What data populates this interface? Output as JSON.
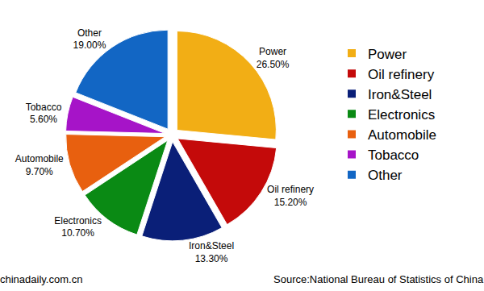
{
  "chart_data": {
    "type": "pie",
    "categories": [
      "Power",
      "Oil refinery",
      "Iron&Steel",
      "Electronics",
      "Automobile",
      "Tobacco",
      "Other"
    ],
    "values": [
      26.5,
      15.2,
      13.3,
      10.7,
      9.7,
      5.6,
      19.0
    ],
    "value_labels": [
      "26.50%",
      "15.20%",
      "13.30%",
      "10.70%",
      "9.70%",
      "5.60%",
      "19.00%"
    ],
    "colors": [
      "#f2ae15",
      "#c40a0a",
      "#0a1f78",
      "#0a8a14",
      "#e8600f",
      "#a614c8",
      "#1266c4"
    ],
    "data_labels": true,
    "legend": "right",
    "annotations": [
      "chinadaily.com.cn",
      "Source:National Bureau of Statistics of China"
    ]
  }
}
